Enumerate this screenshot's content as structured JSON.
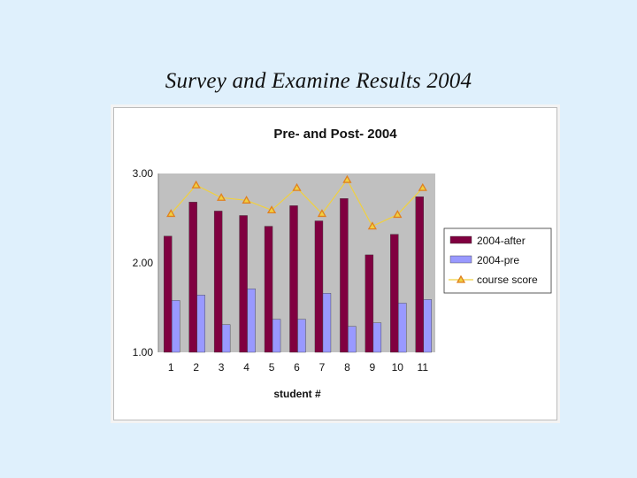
{
  "slide": {
    "title": "Survey and Examine Results 2004"
  },
  "chart_data": {
    "type": "bar",
    "title": "Pre- and Post- 2004",
    "xlabel": "student #",
    "ylabel": "",
    "ylim": [
      1.0,
      3.0
    ],
    "y_ticks": [
      "1.00",
      "2.00",
      "3.00"
    ],
    "categories": [
      "1",
      "2",
      "3",
      "4",
      "5",
      "6",
      "7",
      "8",
      "9",
      "10",
      "11"
    ],
    "series": [
      {
        "name": "2004-after",
        "kind": "bar",
        "color": "#800040",
        "values": [
          2.3,
          2.68,
          2.58,
          2.53,
          2.41,
          2.64,
          2.47,
          2.72,
          2.09,
          2.32,
          2.74
        ]
      },
      {
        "name": "2004-pre",
        "kind": "bar",
        "color": "#9999ff",
        "values": [
          1.58,
          1.64,
          1.31,
          1.71,
          1.37,
          1.37,
          1.66,
          1.29,
          1.33,
          1.55,
          1.59
        ]
      },
      {
        "name": "course score",
        "kind": "line",
        "color": "#f0d040",
        "marker_color": "#e08020",
        "values": [
          2.55,
          2.87,
          2.73,
          2.7,
          2.59,
          2.84,
          2.55,
          2.93,
          2.41,
          2.54,
          2.84
        ]
      }
    ],
    "plot_background": "#c0c0c0",
    "legend_position": "right"
  }
}
